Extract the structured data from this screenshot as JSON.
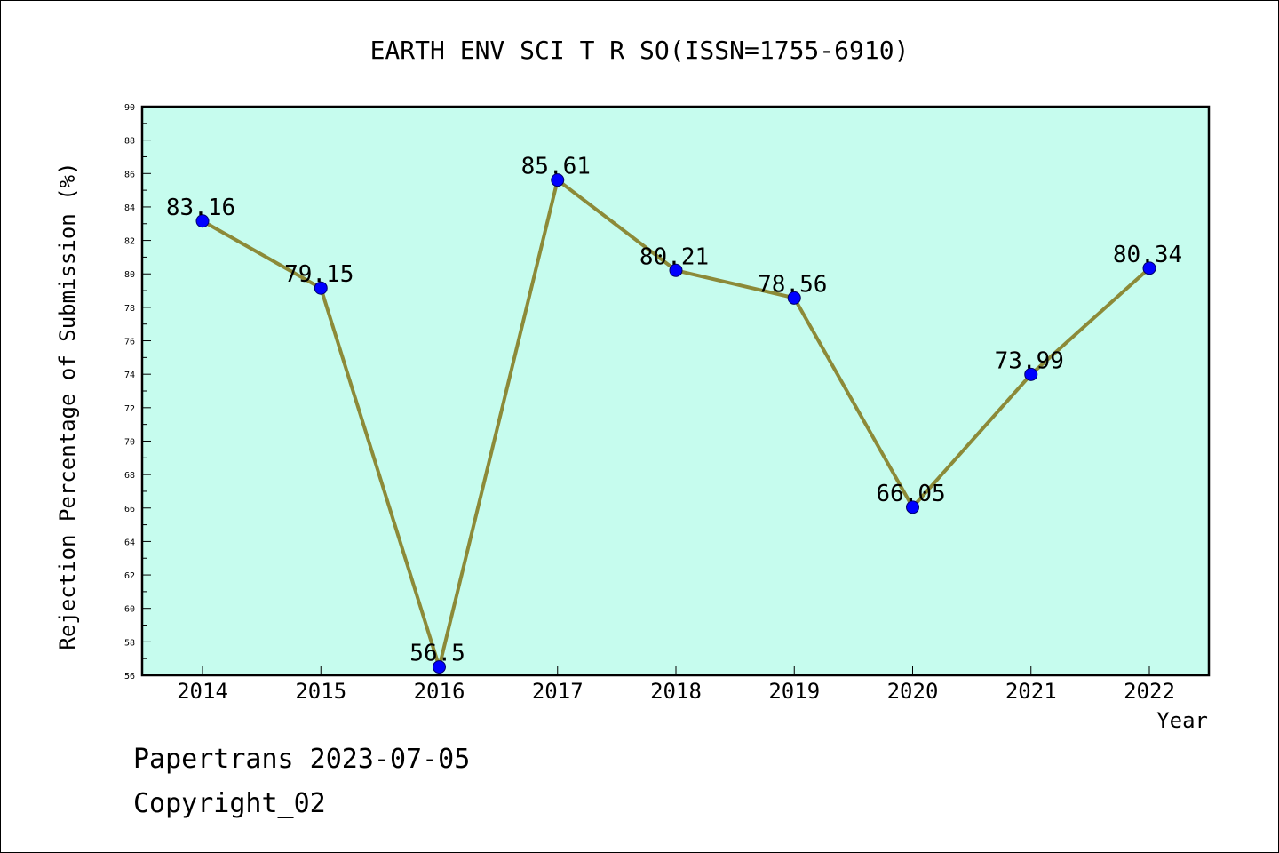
{
  "chart_data": {
    "type": "line",
    "title": "EARTH ENV SCI T R SO(ISSN=1755-6910)",
    "xlabel": "Year",
    "ylabel": "Rejection Percentage of Submission (%)",
    "categories": [
      "2014",
      "2015",
      "2016",
      "2017",
      "2018",
      "2019",
      "2020",
      "2021",
      "2022"
    ],
    "series": [
      {
        "values": [
          83.16,
          79.15,
          56.5,
          85.61,
          80.21,
          78.56,
          66.05,
          73.99,
          80.34
        ],
        "labels": [
          "83.16",
          "79.15",
          "56.5",
          "85.61",
          "80.21",
          "78.56",
          "66.05",
          "73.99",
          "80.34"
        ]
      }
    ],
    "ylim": [
      56,
      90
    ],
    "yticks": [
      "56",
      "58",
      "60",
      "62",
      "64",
      "66",
      "68",
      "70",
      "72",
      "74",
      "76",
      "78",
      "80",
      "82",
      "84",
      "86",
      "88",
      "90"
    ],
    "grid": false,
    "colors": {
      "plot_background": "#c6fcee",
      "line": "#8c8a38",
      "marker": "#0000ff",
      "axis": "#000000"
    }
  },
  "footer": {
    "line1": "Papertrans 2023-07-05",
    "line2": "Copyright_02"
  }
}
